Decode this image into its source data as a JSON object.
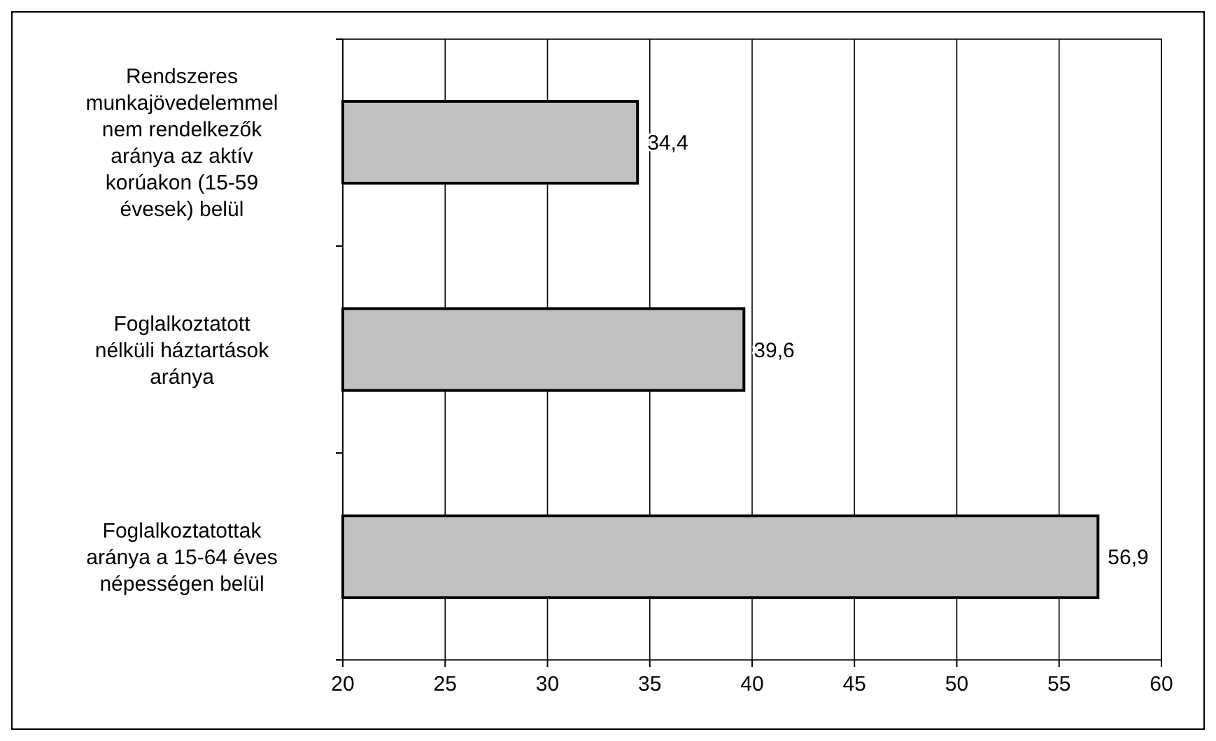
{
  "chart_data": {
    "type": "bar",
    "orientation": "horizontal",
    "categories": [
      "Rendszeres munkajövedelemmel nem rendelkezők aránya az aktív korúakon (15-59 évesek) belül",
      "Foglalkoztatott nélküli háztartások aránya",
      "Foglalkoztatottak aránya a 15-64 éves népességen belül"
    ],
    "values": [
      34.4,
      39.6,
      56.9
    ],
    "value_labels": [
      "34,4",
      "39,6",
      "56,9"
    ],
    "color": "#c0c0c0",
    "xlim": [
      20,
      60
    ],
    "xticks": [
      20,
      25,
      30,
      35,
      40,
      45,
      50,
      55,
      60
    ],
    "grid": "x"
  }
}
